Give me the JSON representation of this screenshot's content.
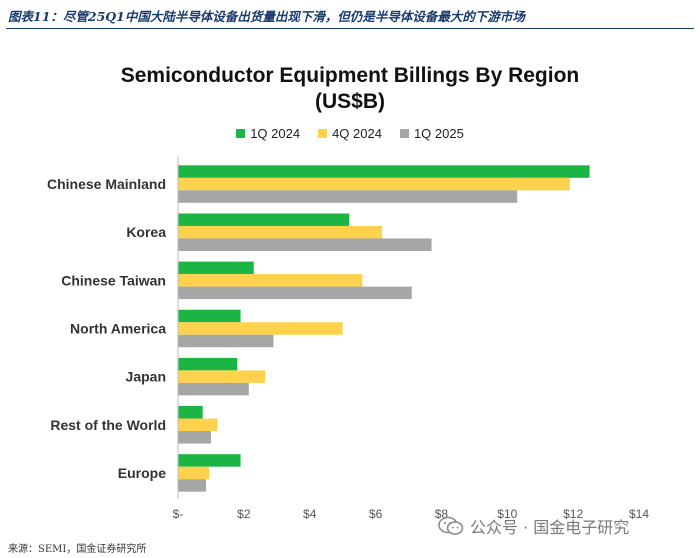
{
  "figure_caption": "图表11：尽管25Q1中国大陆半导体设备出货量出现下滑，但仍是半导体设备最大的下游市场",
  "source_note": "来源：SEMI，国金证券研究所",
  "watermark": "公众号 · 国金电子研究",
  "colors": {
    "1Q 2024": "#1ab544",
    "4Q 2024": "#ffd24d",
    "1Q 2025": "#a6a6a6",
    "caption": "#1a3a6e",
    "axis_line": "#bfbfbf"
  },
  "chart_data": {
    "type": "bar",
    "orientation": "horizontal",
    "title": "Semiconductor Equipment Billings By Region",
    "subtitle": "(US$B)",
    "legend_position": "top",
    "categories": [
      "Chinese Mainland",
      "Korea",
      "Chinese Taiwan",
      "North America",
      "Japan",
      "Rest of the World",
      "Europe"
    ],
    "series": [
      {
        "name": "1Q 2024",
        "values": [
          12.5,
          5.2,
          2.3,
          1.9,
          1.8,
          0.75,
          1.9
        ]
      },
      {
        "name": "4Q 2024",
        "values": [
          11.9,
          6.2,
          5.6,
          5.0,
          2.65,
          1.2,
          0.95
        ]
      },
      {
        "name": "1Q 2025",
        "values": [
          10.3,
          7.7,
          7.1,
          2.9,
          2.15,
          1.0,
          0.85
        ]
      }
    ],
    "xlim": [
      0,
      14
    ],
    "xticks": [
      0,
      2,
      4,
      6,
      8,
      10,
      12,
      14
    ],
    "xtick_labels": [
      "$-",
      "$2",
      "$4",
      "$6",
      "$8",
      "$10",
      "$12",
      "$14"
    ],
    "grid": false
  }
}
